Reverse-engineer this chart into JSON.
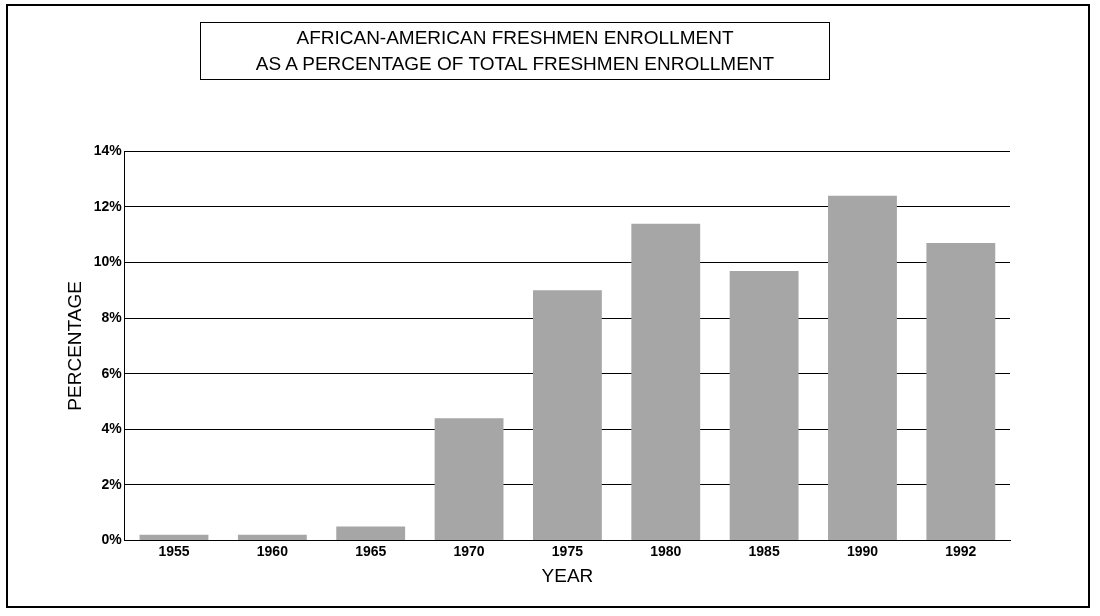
{
  "chart_data": {
    "type": "bar",
    "title": "AFRICAN-AMERICAN FRESHMEN ENROLLMENT\nAS A PERCENTAGE OF TOTAL FRESHMEN ENROLLMENT",
    "xlabel": "YEAR",
    "ylabel": "PERCENTAGE",
    "categories": [
      "1955",
      "1960",
      "1965",
      "1970",
      "1975",
      "1980",
      "1985",
      "1990",
      "1992"
    ],
    "values": [
      0.2,
      0.2,
      0.5,
      4.4,
      9.0,
      11.4,
      9.7,
      12.4,
      10.7
    ],
    "color": "#a6a6a6",
    "ylim": [
      0,
      14
    ],
    "yticks": [
      {
        "value": 0,
        "label": "0%"
      },
      {
        "value": 2,
        "label": "2%"
      },
      {
        "value": 4,
        "label": "4%"
      },
      {
        "value": 6,
        "label": "6%"
      },
      {
        "value": 8,
        "label": "8%"
      },
      {
        "value": 10,
        "label": "10%"
      },
      {
        "value": 12,
        "label": "12%"
      },
      {
        "value": 14,
        "label": "14%"
      }
    ],
    "grid": "y"
  }
}
